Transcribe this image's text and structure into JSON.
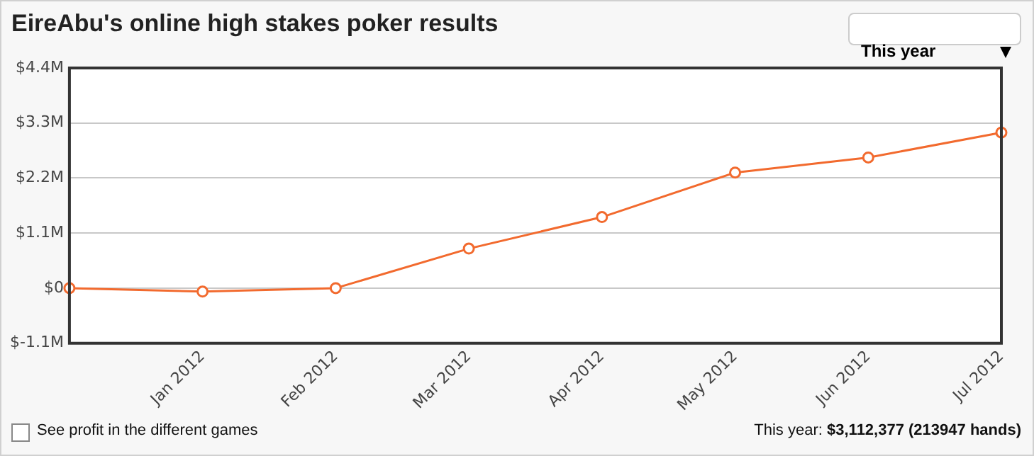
{
  "chart_data": {
    "type": "line",
    "title": "EireAbu's online high stakes poker results",
    "categories": [
      null,
      "Jan 2012",
      "Feb 2012",
      "Mar 2012",
      "Apr 2012",
      "May 2012",
      "Jun 2012",
      "Jul 2012"
    ],
    "series": [
      {
        "color": "#f26a2e",
        "values": [
          0,
          -0.07,
          0,
          0.79,
          1.42,
          2.31,
          2.61,
          3.11
        ]
      }
    ],
    "ylim": [
      -1.1,
      4.4
    ],
    "yticks": [
      {
        "value": -1.1,
        "label": "$-1.1M"
      },
      {
        "value": 0,
        "label": "$0"
      },
      {
        "value": 1.1,
        "label": "$1.1M"
      },
      {
        "value": 2.2,
        "label": "$2.2M"
      },
      {
        "value": 3.3,
        "label": "$3.3M"
      },
      {
        "value": 4.4,
        "label": "$4.4M"
      }
    ],
    "grid": "y",
    "legend": false,
    "marker": "circle",
    "line_style": "solid",
    "annotations": [
      "This year",
      "See profit in the different games",
      "This year: $3,112,377 (213947 hands)"
    ]
  }
}
